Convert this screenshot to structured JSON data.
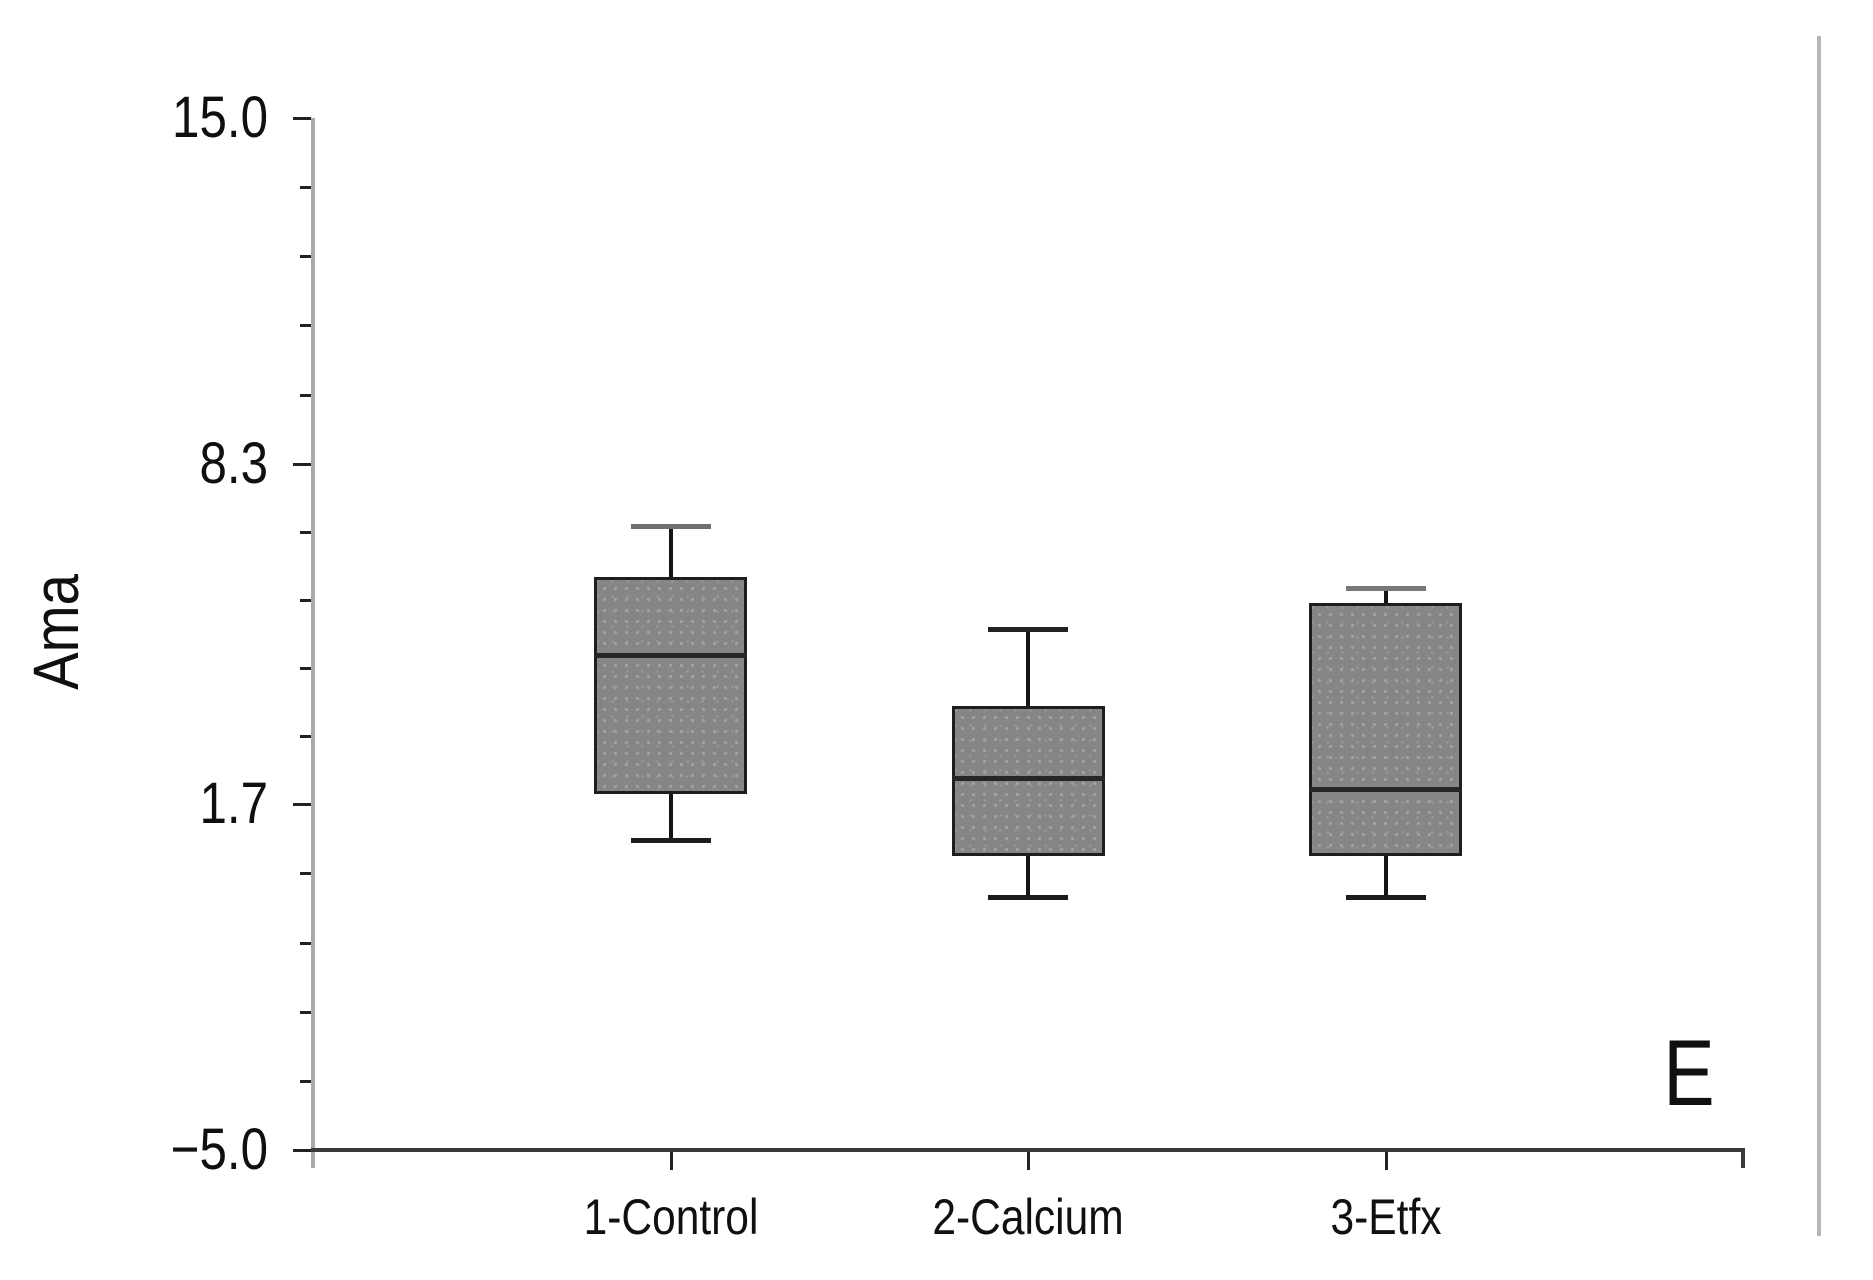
{
  "figure": {
    "background": "#ffffff",
    "ylabel": "Ama",
    "panel_label": "E"
  },
  "chart_data": {
    "type": "box",
    "title": "",
    "xlabel": "",
    "ylabel": "Ama",
    "panel_label": "E",
    "ylim": [
      -5.0,
      15.0
    ],
    "grid": false,
    "legend": "none",
    "y_major_ticks": [
      {
        "value": 15.0,
        "label": "15.0"
      },
      {
        "value": 8.3,
        "label": "8.3"
      },
      {
        "value": 1.7,
        "label": "1.7"
      },
      {
        "value": -5.0,
        "label": "−5.0"
      }
    ],
    "y_minor_intervals_per_major": 5,
    "categories": [
      "1-Control",
      "2-Calcium",
      "3-Etfx"
    ],
    "series": [
      {
        "category": "1-Control",
        "whisker_low": 1.0,
        "q1": 1.9,
        "median": 4.6,
        "q3": 6.1,
        "whisker_high": 7.1,
        "top_cap_color": "#6e6e6e"
      },
      {
        "category": "2-Calcium",
        "whisker_low": -0.1,
        "q1": 0.7,
        "median": 2.2,
        "q3": 3.6,
        "whisker_high": 5.1,
        "top_cap_color": "#222222"
      },
      {
        "category": "3-Etfx",
        "whisker_low": -0.1,
        "q1": 0.7,
        "median": 2.0,
        "q3": 5.6,
        "whisker_high": 5.9,
        "top_cap_color": "#787878"
      }
    ],
    "colors": {
      "box_fill": "#868686",
      "box_dot": "#a2a2a2",
      "box_dot2": "#9a948e",
      "box_border": "#1e1e1e",
      "median": "#262626",
      "whisker": "#151515",
      "cap": "#1c1c1c",
      "y_axis_line": "#a9a9a9",
      "x_axis_line": "#3a3a3a",
      "tick": "#222222",
      "text": "#101010",
      "page_edge": "#b6b6b6"
    }
  }
}
